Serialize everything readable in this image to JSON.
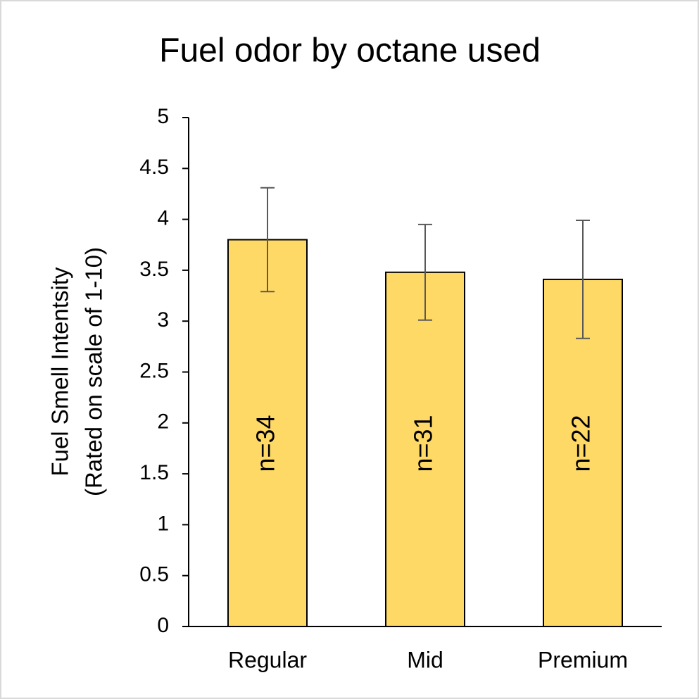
{
  "chart_data": {
    "type": "bar",
    "title": "Fuel odor by octane used",
    "y_label": [
      "Fuel Smell Intentsity",
      "(Rated on scale of 1-10)"
    ],
    "categories": [
      "Regular",
      "Mid",
      "Premium"
    ],
    "values": [
      3.8,
      3.48,
      3.41
    ],
    "errors": [
      0.51,
      0.47,
      0.58
    ],
    "bar_labels": [
      "n=34",
      "n=31",
      "n=22"
    ],
    "color": "#ffd966",
    "error_color": "#595959",
    "ylim": [
      0,
      5
    ],
    "yticks": [
      0,
      0.5,
      1,
      1.5,
      2,
      2.5,
      3,
      3.5,
      4,
      4.5,
      5
    ],
    "grid": false
  }
}
